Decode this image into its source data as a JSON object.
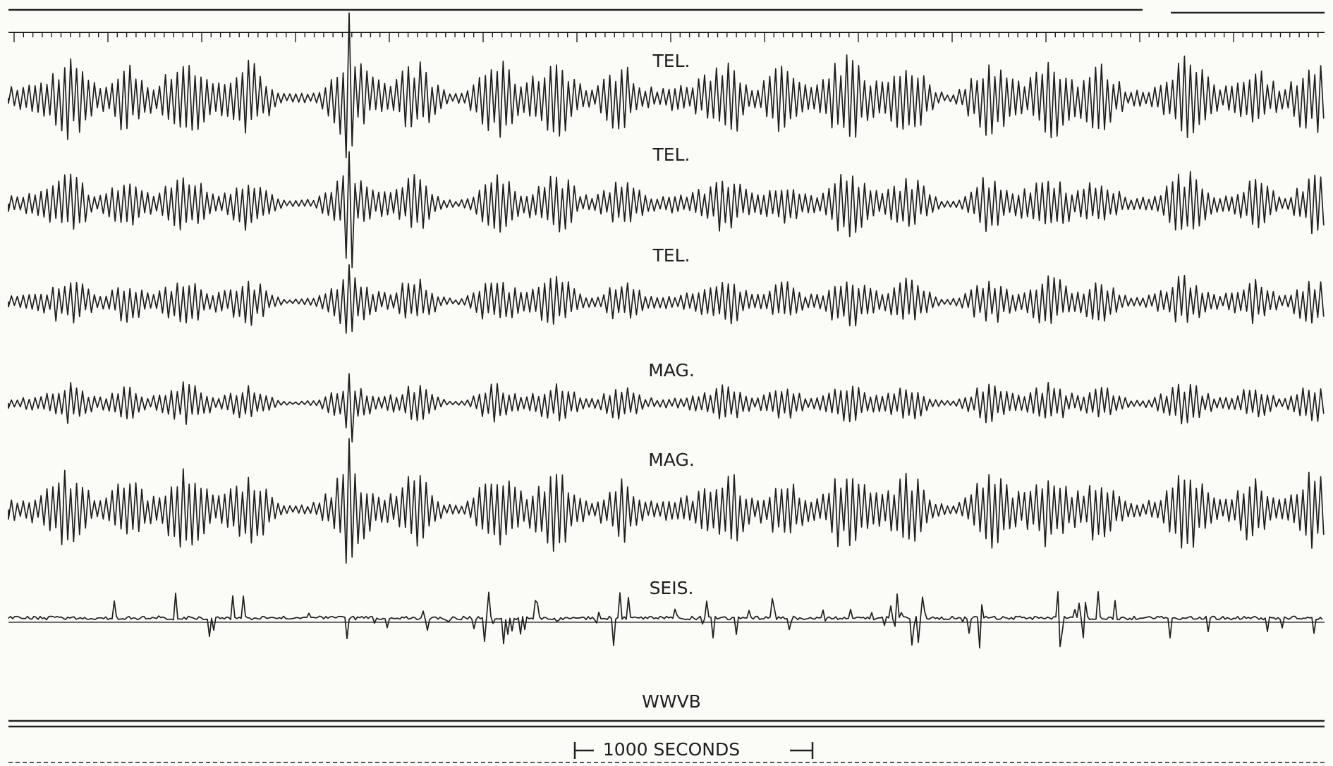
{
  "traces": [
    {
      "label": "TEL."
    },
    {
      "label": "TEL."
    },
    {
      "label": "TEL."
    },
    {
      "label": "MAG."
    },
    {
      "label": "MAG."
    },
    {
      "label": "SEIS."
    },
    {
      "label": "WWVB"
    }
  ],
  "scale_bar": {
    "label": "1000 SECONDS"
  }
}
